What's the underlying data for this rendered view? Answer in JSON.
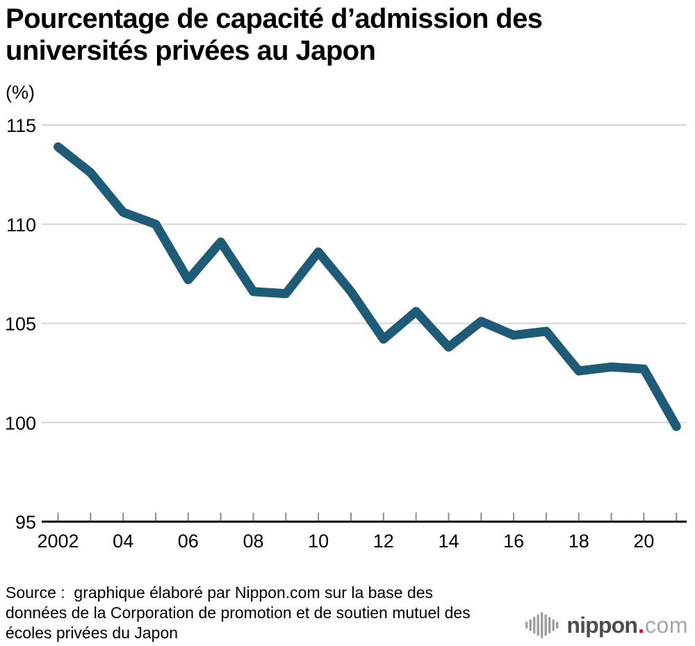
{
  "header": {
    "title_line1": "Pourcentage de capacité d’admission des",
    "title_line2": "universités privées au Japon",
    "unit_label": "(%)"
  },
  "chart_data": {
    "type": "line",
    "title": "Pourcentage de capacité d’admission des universités privées au Japon",
    "ylabel": "(%)",
    "x": [
      2002,
      2003,
      2004,
      2005,
      2006,
      2007,
      2008,
      2009,
      2010,
      2011,
      2012,
      2013,
      2014,
      2015,
      2016,
      2017,
      2018,
      2019,
      2020,
      2021
    ],
    "values": [
      113.9,
      112.6,
      110.6,
      110.0,
      107.2,
      109.1,
      106.6,
      106.5,
      108.6,
      106.6,
      104.2,
      105.6,
      103.8,
      105.1,
      104.4,
      104.6,
      102.6,
      102.8,
      102.7,
      99.8
    ],
    "xtick_labels": [
      "2002",
      "04",
      "06",
      "08",
      "10",
      "12",
      "14",
      "16",
      "18",
      "20"
    ],
    "yticks": [
      95,
      100,
      105,
      110,
      115
    ],
    "ylim": [
      95,
      115
    ],
    "grid": true,
    "legend": "none",
    "line_color": "#1e5b76",
    "grid_color": "#d6d6d6",
    "axis_color": "#000000",
    "tick_color": "#8c8c8c"
  },
  "footer": {
    "source_text": "Source :  graphique élaboré par Nippon.com sur la base des\ndonnées de la Corporation de promotion et de soutien mutuel des\nécoles privées du Japon",
    "logo": {
      "icon": "soundwave-bars-icon",
      "name": "nippon",
      "dot": ".",
      "tld": "com",
      "name_color": "#4d4d4d",
      "dot_color": "#e60012",
      "tld_color": "#a6a6a6"
    }
  }
}
